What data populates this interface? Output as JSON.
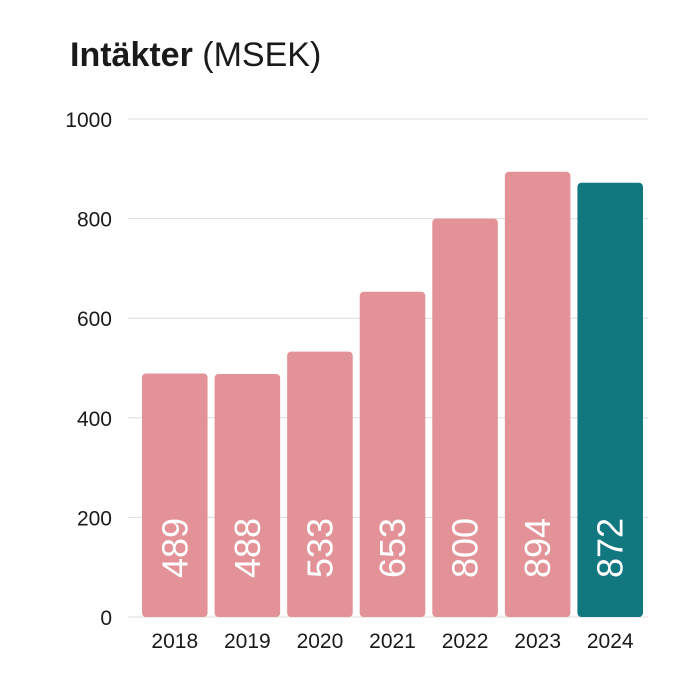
{
  "chart_data": {
    "type": "bar",
    "title_main": "Intäkter",
    "title_unit": "(MSEK)",
    "categories": [
      "2018",
      "2019",
      "2020",
      "2021",
      "2022",
      "2023",
      "2024"
    ],
    "values": [
      489,
      488,
      533,
      653,
      800,
      894,
      872
    ],
    "value_labels": [
      "489",
      "488",
      "533",
      "653",
      "800",
      "894",
      "872"
    ],
    "yticks": [
      0,
      200,
      400,
      600,
      800,
      1000
    ],
    "ytick_labels": [
      "0",
      "200",
      "400",
      "600",
      "800",
      "1000"
    ],
    "ylim": [
      0,
      1000
    ],
    "grid": true,
    "colors": {
      "bar": "#e39398",
      "highlight": "#127880",
      "grid": "#dddddd"
    },
    "highlight_category": "2024"
  }
}
